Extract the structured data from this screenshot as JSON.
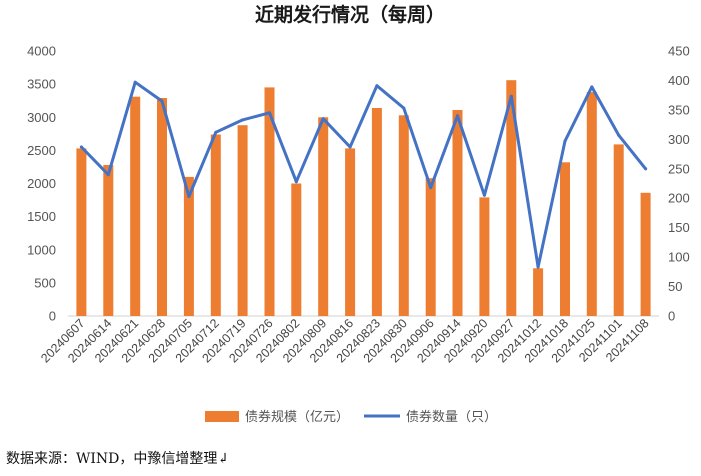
{
  "chart_data": {
    "type": "bar+line",
    "title": "近期发行情况（每周）",
    "categories": [
      "20240607",
      "20240614",
      "20240621",
      "20240628",
      "20240705",
      "20240712",
      "20240719",
      "20240726",
      "20240802",
      "20240809",
      "20240816",
      "20240823",
      "20240830",
      "20240906",
      "20240914",
      "20240920",
      "20240927",
      "20241012",
      "20241018",
      "20241025",
      "20241101",
      "20241108"
    ],
    "category_labels": [
      "20240607",
      "20240614",
      "20240621",
      "20240628",
      "20240705",
      "20240712",
      "20240719",
      "20240726",
      "20240802",
      "20240809",
      "20240816",
      "20240823",
      "20240830",
      "20240906",
      "20240914",
      "20240920",
      "20240927",
      "20241012",
      "20241018",
      "20241025",
      "20241101",
      "20241108"
    ],
    "series": [
      {
        "name": "债券规模（亿元）",
        "type": "bar",
        "axis": "left",
        "color": "#ED7D31",
        "values": [
          2530,
          2280,
          3310,
          3290,
          2100,
          2740,
          2880,
          3450,
          2000,
          3000,
          2530,
          3140,
          3030,
          2080,
          3110,
          1790,
          3560,
          720,
          2320,
          3380,
          2590,
          1860
        ]
      },
      {
        "name": "债券数量（只）",
        "type": "line",
        "axis": "right",
        "color": "#4472C4",
        "values": [
          287,
          240,
          397,
          365,
          203,
          312,
          333,
          345,
          228,
          335,
          287,
          391,
          353,
          218,
          340,
          205,
          373,
          83,
          297,
          389,
          307,
          250
        ]
      }
    ],
    "left_axis": {
      "min": 0,
      "max": 4000,
      "step": 500,
      "ticks": [
        "0",
        "500",
        "1000",
        "1500",
        "2000",
        "2500",
        "3000",
        "3500",
        "4000"
      ]
    },
    "right_axis": {
      "min": 0,
      "max": 450,
      "step": 50,
      "ticks": [
        "0",
        "50",
        "100",
        "150",
        "200",
        "250",
        "300",
        "350",
        "400",
        "450"
      ]
    },
    "grid": false,
    "legend_position": "bottom"
  },
  "source_note": "数据来源：WIND，中豫信增整理↲"
}
